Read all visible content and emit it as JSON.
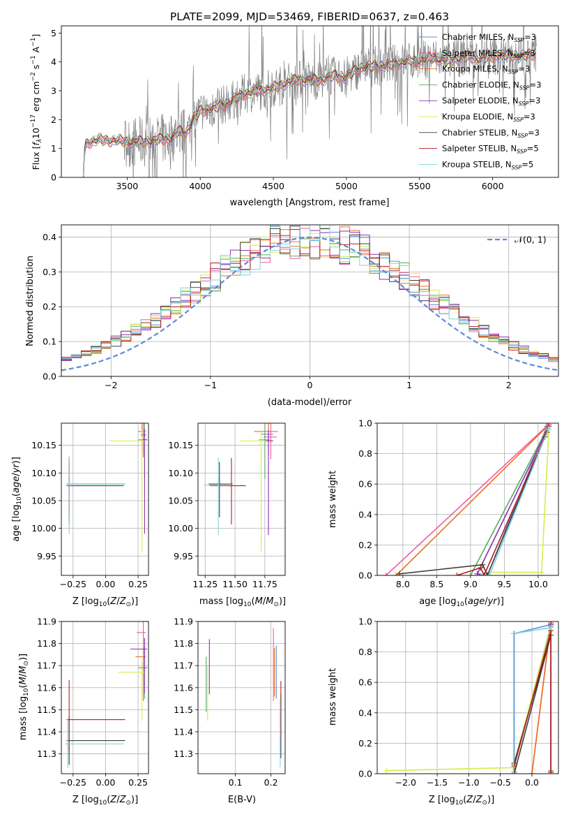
{
  "title": "PLATE=2099, MJD=53469, FIBERID=0637, z=0.463",
  "colors": {
    "C_MILES": "#5b8dd6",
    "S_MILES": "#f35a9e",
    "K_MILES": "#ee6f1e",
    "C_ELODIE": "#5aab5a",
    "S_ELODIE": "#8d2bb5",
    "K_ELODIE": "#d7ec4b",
    "C_STELIB": "#3e3e3e",
    "S_STELIB": "#b81b1b",
    "K_STELIB": "#7ed4dc",
    "gauss": "#5b8bd8",
    "obs": "#808080"
  },
  "chart_data": [
    {
      "id": "spectrum",
      "type": "line",
      "xlabel": "wavelength [Angstrom, rest frame]",
      "ylabel": "Flux [f_λ10^-17 erg cm^-2 s^-1 A^-1]",
      "xlim": [
        3050,
        6450
      ],
      "ylim": [
        0,
        5.25
      ],
      "xticks": [
        3500,
        4000,
        4500,
        5000,
        5500,
        6000
      ],
      "yticks": [
        0,
        1,
        2,
        3,
        4,
        5
      ],
      "grid": false,
      "legend_position": "right",
      "legend": [
        {
          "key": "C_MILES",
          "base": "Chabrier MILES, N",
          "sub": "SSP",
          "tail": "=3"
        },
        {
          "key": "S_MILES",
          "base": "Salpeter MILES, N",
          "sub": "SSP",
          "tail": "=3"
        },
        {
          "key": "K_MILES",
          "base": "Kroupa MILES, N",
          "sub": "SSP",
          "tail": "=3"
        },
        {
          "key": "C_ELODIE",
          "base": "Chabrier ELODIE, N",
          "sub": "SSP",
          "tail": "=3"
        },
        {
          "key": "S_ELODIE",
          "base": "Salpeter ELODIE, N",
          "sub": "SSP",
          "tail": "=3"
        },
        {
          "key": "K_ELODIE",
          "base": "Kroupa ELODIE, N",
          "sub": "SSP",
          "tail": "=3"
        },
        {
          "key": "C_STELIB",
          "base": "Chabrier STELIB, N",
          "sub": "SSP",
          "tail": "=3"
        },
        {
          "key": "S_STELIB",
          "base": "Salpeter STELIB, N",
          "sub": "SSP",
          "tail": "=5"
        },
        {
          "key": "K_STELIB",
          "base": "Kroupa STELIB, N",
          "sub": "SSP",
          "tail": "=5"
        }
      ],
      "observed_start": 3200,
      "observed_end": 6300,
      "model_trend": {
        "x": [
          3200,
          3210,
          3230,
          3300,
          3400,
          3500,
          3600,
          3700,
          3800,
          3850,
          3900,
          3950,
          4000,
          4100,
          4200,
          4300,
          4400,
          4500,
          4600,
          4700,
          4800,
          4900,
          5000,
          5100,
          5200,
          5300,
          5400,
          5500,
          5600,
          5700,
          5800,
          5900,
          6000,
          6100,
          6200,
          6300
        ],
        "y": [
          0.05,
          1.05,
          1.2,
          1.3,
          1.28,
          1.25,
          1.22,
          1.3,
          1.35,
          1.6,
          1.5,
          2.0,
          2.3,
          2.4,
          2.6,
          2.9,
          3.0,
          3.1,
          3.3,
          3.4,
          3.35,
          3.5,
          3.5,
          3.8,
          3.85,
          3.9,
          4.0,
          4.05,
          4.15,
          4.0,
          4.2,
          4.1,
          4.2,
          4.25,
          4.2,
          4.3
        ]
      }
    },
    {
      "id": "residuals",
      "type": "line",
      "xlabel": "(data-model)/error",
      "ylabel": "Normed distribution",
      "xlim": [
        -2.5,
        2.5
      ],
      "ylim": [
        0,
        0.435
      ],
      "xticks": [
        -2,
        -1,
        0,
        1,
        2
      ],
      "yticks": [
        0.0,
        0.1,
        0.2,
        0.3,
        0.4
      ],
      "grid": true,
      "legend": "𝒩(0, 1)",
      "legend_position": "top-right",
      "bins": {
        "start": -2.5,
        "width": 0.1,
        "count": 50
      }
    },
    {
      "id": "age_vs_Z",
      "type": "scatter",
      "xlabel": "Z [log10(Z/Z⊙)]",
      "ylabel": "age  [log10(age/yr)]",
      "xlim": [
        -0.34,
        0.33
      ],
      "ylim": [
        9.915,
        10.19
      ],
      "xticks": [
        -0.25,
        0.0,
        0.25
      ],
      "yticks": [
        9.95,
        10.0,
        10.05,
        10.1,
        10.15
      ],
      "grid": true,
      "points": [
        {
          "key": "C_MILES",
          "x": 0.29,
          "y": 10.17,
          "xe": [
            0.02,
            0.02
          ],
          "ye": [
            0.04,
            0.04
          ]
        },
        {
          "key": "S_MILES",
          "x": 0.29,
          "y": 10.168,
          "xe": [
            0.02,
            0.02
          ],
          "ye": [
            0.04,
            0.04
          ]
        },
        {
          "key": "K_MILES",
          "x": 0.28,
          "y": 10.175,
          "xe": [
            0.03,
            0.03
          ],
          "ye": [
            0.04,
            0.04
          ]
        },
        {
          "key": "C_ELODIE",
          "x": 0.3,
          "y": 10.16,
          "xe": [
            0.05,
            0.02
          ],
          "ye": [
            0.07,
            0.03
          ]
        },
        {
          "key": "S_ELODIE",
          "x": 0.3,
          "y": 10.16,
          "xe": [
            0.02,
            0.02
          ],
          "ye": [
            0.17,
            0.02
          ]
        },
        {
          "key": "K_ELODIE",
          "x": 0.28,
          "y": 10.158,
          "xe": [
            0.25,
            0.02
          ],
          "ye": [
            0.2,
            0.02
          ]
        },
        {
          "key": "C_STELIB",
          "x": -0.28,
          "y": 10.08,
          "xe": [
            0.02,
            0.43
          ],
          "ye": [
            0.06,
            0.04
          ]
        },
        {
          "key": "S_STELIB",
          "x": -0.28,
          "y": 10.077,
          "xe": [
            0.02,
            0.42
          ],
          "ye": [
            0.07,
            0.05
          ]
        },
        {
          "key": "K_STELIB",
          "x": -0.28,
          "y": 10.08,
          "xe": [
            0.02,
            0.43
          ],
          "ye": [
            0.09,
            0.05
          ]
        }
      ]
    },
    {
      "id": "age_vs_mass",
      "type": "scatter",
      "xlabel": "mass [log10(M/M⊙)]",
      "ylabel": "",
      "xlim": [
        11.19,
        11.92
      ],
      "ylim": [
        9.915,
        10.19
      ],
      "xticks": [
        11.25,
        11.5,
        11.75
      ],
      "yticks": [
        9.95,
        10.0,
        10.05,
        10.1,
        10.15
      ],
      "grid": true,
      "points": [
        {
          "key": "C_MILES",
          "x": 11.78,
          "y": 10.17,
          "xe": [
            0.06,
            0.04
          ],
          "ye": [
            0.04,
            0.04
          ]
        },
        {
          "key": "S_MILES",
          "x": 11.8,
          "y": 10.165,
          "xe": [
            0.06,
            0.05
          ],
          "ye": [
            0.04,
            0.04
          ]
        },
        {
          "key": "K_MILES",
          "x": 11.78,
          "y": 10.175,
          "xe": [
            0.12,
            0.08
          ],
          "ye": [
            0.04,
            0.04
          ]
        },
        {
          "key": "C_ELODIE",
          "x": 11.75,
          "y": 10.16,
          "xe": [
            0.05,
            0.04
          ],
          "ye": [
            0.07,
            0.03
          ]
        },
        {
          "key": "S_ELODIE",
          "x": 11.78,
          "y": 10.158,
          "xe": [
            0.04,
            0.04
          ],
          "ye": [
            0.17,
            0.02
          ]
        },
        {
          "key": "K_ELODIE",
          "x": 11.72,
          "y": 10.158,
          "xe": [
            0.18,
            0.04
          ],
          "ye": [
            0.2,
            0.02
          ]
        },
        {
          "key": "C_STELIB",
          "x": 11.37,
          "y": 10.08,
          "xe": [
            0.09,
            0.11
          ],
          "ye": [
            0.06,
            0.04
          ]
        },
        {
          "key": "S_STELIB",
          "x": 11.47,
          "y": 10.077,
          "xe": [
            0.18,
            0.12
          ],
          "ye": [
            0.07,
            0.05
          ]
        },
        {
          "key": "K_STELIB",
          "x": 11.36,
          "y": 10.078,
          "xe": [
            0.12,
            0.07
          ],
          "ye": [
            0.09,
            0.05
          ]
        }
      ]
    },
    {
      "id": "weight_vs_age",
      "type": "line",
      "xlabel": "age  [log10(age/yr)]",
      "ylabel": "mass weight",
      "xlim": [
        7.62,
        10.3
      ],
      "ylim": [
        0,
        1.0
      ],
      "xticks": [
        8.0,
        8.5,
        9.0,
        9.5,
        10.0
      ],
      "yticks": [
        0.0,
        0.2,
        0.4,
        0.6,
        0.8,
        1.0
      ],
      "grid": true,
      "series": [
        {
          "key": "C_MILES",
          "x": [
            9.25,
            10.13
          ],
          "y": [
            0.0,
            0.98
          ]
        },
        {
          "key": "S_MILES",
          "x": [
            7.75,
            10.15
          ],
          "y": [
            0.0,
            0.99
          ]
        },
        {
          "key": "K_MILES",
          "x": [
            7.9,
            10.16
          ],
          "y": [
            0.0,
            0.99
          ]
        },
        {
          "key": "C_ELODIE",
          "x": [
            9.0,
            10.14
          ],
          "y": [
            0.0,
            0.97
          ]
        },
        {
          "key": "S_ELODIE",
          "x": [
            9.2,
            9.1,
            10.16
          ],
          "y": [
            0.0,
            0.01,
            0.98
          ]
        },
        {
          "key": "K_ELODIE",
          "x": [
            9.28,
            10.05,
            10.16
          ],
          "y": [
            0.02,
            0.02,
            0.96
          ]
        },
        {
          "key": "C_STELIB",
          "x": [
            7.95,
            9.18,
            9.25,
            10.1
          ],
          "y": [
            0.01,
            0.07,
            0.0,
            0.91
          ]
        },
        {
          "key": "S_STELIB",
          "x": [
            8.8,
            9.15,
            9.2,
            10.13
          ],
          "y": [
            0.0,
            0.05,
            0.0,
            0.94
          ]
        },
        {
          "key": "K_STELIB",
          "x": [
            9.15,
            9.28,
            10.15
          ],
          "y": [
            0.0,
            0.0,
            0.96
          ]
        }
      ]
    },
    {
      "id": "mass_vs_Z",
      "type": "scatter",
      "xlabel": "Z [log10(Z/Z⊙)]",
      "ylabel": "mass [log10(M/M⊙)]",
      "xlim": [
        -0.34,
        0.33
      ],
      "ylim": [
        11.21,
        11.9
      ],
      "xticks": [
        -0.25,
        0.0,
        0.25
      ],
      "yticks": [
        11.3,
        11.4,
        11.5,
        11.6,
        11.7,
        11.8,
        11.9
      ],
      "grid": true,
      "points": [
        {
          "key": "C_MILES",
          "x": 0.3,
          "y": 11.69,
          "xe": [
            0.04,
            0.02
          ],
          "ye": [
            0.12,
            0.1
          ]
        },
        {
          "key": "S_MILES",
          "x": 0.29,
          "y": 11.85,
          "xe": [
            0.05,
            0.02
          ],
          "ye": [
            0.1,
            0.08
          ]
        },
        {
          "key": "K_MILES",
          "x": 0.29,
          "y": 11.74,
          "xe": [
            0.06,
            0.02
          ],
          "ye": [
            0.2,
            0.12
          ]
        },
        {
          "key": "C_ELODIE",
          "x": 0.3,
          "y": 11.69,
          "xe": [
            0.05,
            0.02
          ],
          "ye": [
            0.14,
            0.06
          ]
        },
        {
          "key": "S_ELODIE",
          "x": 0.3,
          "y": 11.775,
          "xe": [
            0.11,
            0.02
          ],
          "ye": [
            0.2,
            0.05
          ]
        },
        {
          "key": "K_ELODIE",
          "x": 0.28,
          "y": 11.67,
          "xe": [
            0.18,
            0.02
          ],
          "ye": [
            0.22,
            0.05
          ]
        },
        {
          "key": "C_STELIB",
          "x": -0.28,
          "y": 11.36,
          "xe": [
            0.02,
            0.43
          ],
          "ye": [
            0.11,
            0.11
          ]
        },
        {
          "key": "S_STELIB",
          "x": -0.28,
          "y": 11.455,
          "xe": [
            0.02,
            0.43
          ],
          "ye": [
            0.14,
            0.18
          ]
        },
        {
          "key": "K_STELIB",
          "x": -0.29,
          "y": 11.345,
          "xe": [
            0.02,
            0.43
          ],
          "ye": [
            0.11,
            0.11
          ]
        }
      ]
    },
    {
      "id": "mass_vs_ebv",
      "type": "scatter",
      "xlabel": "E(B-V)",
      "ylabel": "",
      "xlim": [
        -0.005,
        0.24
      ],
      "ylim": [
        11.21,
        11.9
      ],
      "xticks": [
        0.1,
        0.2
      ],
      "yticks": [
        11.3,
        11.4,
        11.5,
        11.6,
        11.7,
        11.8,
        11.9
      ],
      "grid": true,
      "points": [
        {
          "key": "C_MILES",
          "x": 0.215,
          "y": 11.68,
          "ye": [
            0.13,
            0.11
          ]
        },
        {
          "key": "S_MILES",
          "x": 0.207,
          "y": 11.83,
          "ye": [
            0.29,
            0.04
          ]
        },
        {
          "key": "K_MILES",
          "x": 0.21,
          "y": 11.68,
          "ye": [
            0.12,
            0.1
          ]
        },
        {
          "key": "C_ELODIE",
          "x": 0.018,
          "y": 11.62,
          "ye": [
            0.13,
            0.12
          ]
        },
        {
          "key": "S_ELODIE",
          "x": 0.027,
          "y": 11.72,
          "ye": [
            0.15,
            0.1
          ]
        },
        {
          "key": "K_ELODIE",
          "x": 0.022,
          "y": 11.6,
          "ye": [
            0.15,
            0.1
          ]
        },
        {
          "key": "C_STELIB",
          "x": 0.228,
          "y": 11.4,
          "ye": [
            0.12,
            0.17
          ]
        },
        {
          "key": "S_STELIB",
          "x": 0.228,
          "y": 11.5,
          "ye": [
            0.13,
            0.13
          ]
        },
        {
          "key": "K_STELIB",
          "x": 0.226,
          "y": 11.38,
          "ye": [
            0.14,
            0.17
          ]
        }
      ]
    },
    {
      "id": "weight_vs_Z",
      "type": "line",
      "xlabel": "Z [log10(Z/Z⊙)]",
      "ylabel": "mass weight",
      "xlim": [
        -2.45,
        0.42
      ],
      "ylim": [
        0,
        1.0
      ],
      "xticks": [
        -2.0,
        -1.5,
        -1.0,
        -0.5,
        0.0
      ],
      "yticks": [
        0.0,
        0.2,
        0.4,
        0.6,
        0.8,
        1.0
      ],
      "grid": true,
      "series": [
        {
          "key": "C_MILES",
          "x": [
            -0.28,
            -0.28,
            0.3
          ],
          "y": [
            0.01,
            0.92,
            0.98
          ]
        },
        {
          "key": "S_MILES",
          "x": [
            0.0,
            0.3
          ],
          "y": [
            0.0,
            0.99
          ]
        },
        {
          "key": "K_MILES",
          "x": [
            0.0,
            0.3
          ],
          "y": [
            0.0,
            0.99
          ]
        },
        {
          "key": "C_ELODIE",
          "x": [
            -0.28,
            0.3,
            0.3
          ],
          "y": [
            0.06,
            0.97,
            0.02
          ]
        },
        {
          "key": "S_ELODIE",
          "x": [
            0.3,
            0.3
          ],
          "y": [
            0.01,
            0.98
          ]
        },
        {
          "key": "K_ELODIE",
          "x": [
            -2.3,
            -0.3,
            0.3
          ],
          "y": [
            0.02,
            0.04,
            0.96
          ]
        },
        {
          "key": "C_STELIB",
          "x": [
            -0.28,
            0.3,
            -0.28
          ],
          "y": [
            0.07,
            0.91,
            0.0
          ]
        },
        {
          "key": "S_STELIB",
          "x": [
            -0.28,
            -0.28,
            0.3,
            0.3
          ],
          "y": [
            0.0,
            0.05,
            0.94,
            0.01
          ]
        },
        {
          "key": "K_STELIB",
          "x": [
            -0.29,
            -0.29,
            0.3
          ],
          "y": [
            0.0,
            0.92,
            0.96
          ]
        }
      ]
    }
  ]
}
